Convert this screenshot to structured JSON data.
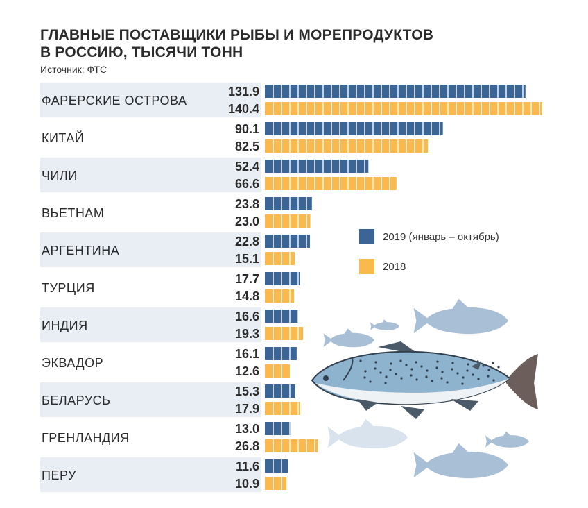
{
  "header": {
    "title_line1": "ГЛАВНЫЕ ПОСТАВЩИКИ РЫБЫ И МОРЕПРОДУКТОВ",
    "title_line2": "В РОССИЮ, ТЫСЯЧИ ТОНН",
    "source": "Источник: ФТС"
  },
  "colors": {
    "series_2019": "#3a6596",
    "series_2018": "#f9b94c",
    "row_shade": "#e9eef5",
    "fish_light": "#a9bfd6",
    "fish_main": "#8aa7c4"
  },
  "legend": {
    "items": [
      {
        "label": "2019 (январь – октябрь)",
        "color": "#3a6596"
      },
      {
        "label": "2018",
        "color": "#f9b94c"
      }
    ]
  },
  "chart_data": {
    "type": "bar",
    "orientation": "horizontal",
    "title": "ГЛАВНЫЕ ПОСТАВЩИКИ РЫБЫ И МОРЕПРОДУКТОВ В РОССИЮ, ТЫСЯЧИ ТОНН",
    "categories": [
      "ФАРЕРСКИЕ ОСТРОВА",
      "КИТАЙ",
      "ЧИЛИ",
      "ВЬЕТНАМ",
      "АРГЕНТИНА",
      "ТУРЦИЯ",
      "ИНДИЯ",
      "ЭКВАДОР",
      "БЕЛАРУСЬ",
      "ГРЕНЛАНДИЯ",
      "ПЕРУ"
    ],
    "series": [
      {
        "name": "2019 (январь – октябрь)",
        "values": [
          131.9,
          90.1,
          52.4,
          23.8,
          22.8,
          17.7,
          16.6,
          16.1,
          15.3,
          13.0,
          11.6
        ],
        "labels": [
          "131.9",
          "90.1",
          "52.4",
          "23.8",
          "22.8",
          "17.7",
          "16.6",
          "16.1",
          "15.3",
          "13.0",
          "11.6"
        ]
      },
      {
        "name": "2018",
        "values": [
          140.4,
          82.5,
          66.6,
          23.0,
          15.1,
          14.8,
          19.3,
          12.6,
          17.9,
          26.8,
          10.9
        ],
        "labels": [
          "140.4",
          "82.5",
          "66.6",
          "23.0",
          "15.1",
          "14.8",
          "19.3",
          "12.6",
          "17.9",
          "26.8",
          "10.9"
        ]
      }
    ],
    "xlim": [
      0,
      140.4
    ],
    "grid": false,
    "legend_position": "right"
  }
}
